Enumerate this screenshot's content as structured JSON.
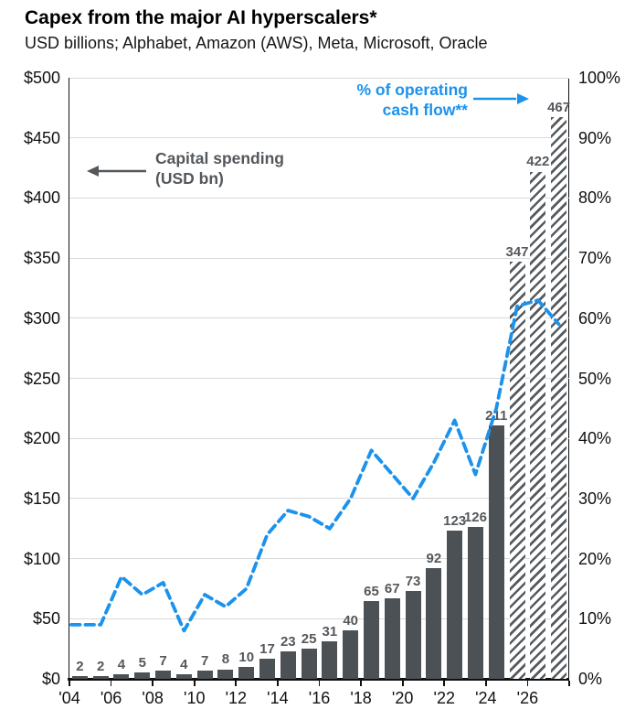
{
  "header": {
    "title": "Capex from the major AI hyperscalers*",
    "subtitle": "USD billions; Alphabet, Amazon (AWS), Meta, Microsoft, Oracle"
  },
  "annotations": {
    "capex_line1": "Capital spending",
    "capex_line2": "(USD bn)",
    "ocf_line1": "% of operating",
    "ocf_line2": "cash flow**"
  },
  "colors": {
    "bar": "#4c5156",
    "bar_forecast_hatch": "#565b60",
    "line": "#1b92ec",
    "grid": "#d9d9d9",
    "axis": "#111111",
    "bar_label": "#55585c",
    "annotation_gray": "#54585c"
  },
  "chart_data": {
    "type": "bar",
    "subtype": "bar-line-combo",
    "x_years": [
      2004,
      2005,
      2006,
      2007,
      2008,
      2009,
      2010,
      2011,
      2012,
      2013,
      2014,
      2015,
      2016,
      2017,
      2018,
      2019,
      2020,
      2021,
      2022,
      2023,
      2024,
      2025,
      2026,
      2027
    ],
    "x_tick_labels": [
      "'04",
      "'06",
      "'08",
      "'10",
      "'12",
      "'14",
      "'16",
      "'18",
      "'20",
      "'22",
      "'24",
      "'26"
    ],
    "series": [
      {
        "name": "Capital spending (USD bn)",
        "type": "bar",
        "axis": "left",
        "values": [
          2,
          2,
          4,
          5,
          7,
          4,
          7,
          8,
          10,
          17,
          23,
          25,
          31,
          40,
          65,
          67,
          73,
          92,
          123,
          126,
          211,
          347,
          422,
          467
        ],
        "forecast_start_index": 21,
        "forecast_style": "diagonal-hatch"
      },
      {
        "name": "% of operating cash flow**",
        "type": "line",
        "style": "dashed",
        "axis": "right",
        "values": [
          9,
          9,
          17,
          14,
          16,
          8,
          14,
          12,
          15,
          24,
          28,
          27,
          25,
          30,
          38,
          34,
          30,
          36,
          43,
          34,
          45,
          62,
          63,
          59
        ]
      }
    ],
    "left_axis": {
      "min": 0,
      "max": 500,
      "step": 50,
      "prefix": "$",
      "suffix": ""
    },
    "right_axis": {
      "min": 0,
      "max": 100,
      "step": 10,
      "prefix": "",
      "suffix": "%"
    },
    "grid": true,
    "legend_position": "in-plot annotations with arrows"
  }
}
